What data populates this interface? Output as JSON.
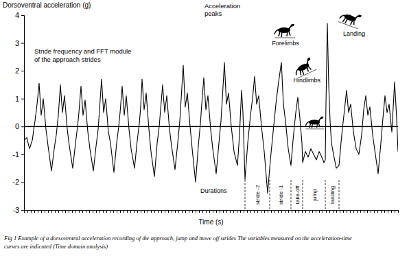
{
  "chart_data": {
    "type": "line",
    "y_label": "Dorsoventral acceleration (g)",
    "x_label": "Time (s)",
    "color": "#000000",
    "grid": false,
    "tick_labels": "y",
    "xlim": [
      0,
      545
    ],
    "ylim": [
      -3,
      4
    ],
    "yticks": [
      -3,
      -2,
      -1,
      0,
      1,
      2,
      3,
      4
    ],
    "xticks": [
      0,
      5,
      10,
      15,
      20,
      25,
      30,
      35,
      40,
      45,
      50,
      55,
      60,
      65,
      70,
      75,
      80,
      85,
      90,
      95,
      100,
      105,
      110,
      115,
      120,
      125,
      130,
      135,
      140,
      145,
      150,
      155,
      160,
      165,
      170,
      175,
      180,
      185,
      190,
      195,
      200,
      205,
      210,
      215,
      220,
      225,
      230,
      235,
      240,
      245,
      250,
      255,
      260,
      265,
      270,
      275,
      280,
      285,
      290,
      295,
      300,
      305,
      310,
      315,
      320,
      325,
      330,
      335,
      340,
      345,
      350,
      355,
      360,
      365,
      370,
      375,
      380,
      385,
      390,
      395,
      400,
      405,
      410,
      415,
      420,
      425,
      430,
      435,
      440,
      445,
      450,
      455,
      460,
      465,
      470,
      475,
      480,
      485,
      490,
      495,
      500,
      505,
      510,
      515,
      520,
      525,
      530,
      535,
      540,
      545
    ],
    "baseline": 0,
    "x": [
      0,
      4,
      8,
      12,
      16,
      19,
      22,
      25,
      28,
      32,
      35,
      40,
      44,
      47,
      50,
      53,
      56,
      59,
      63,
      66,
      71,
      75,
      78,
      80,
      83,
      86,
      89,
      93,
      96,
      101,
      105,
      108,
      110,
      113,
      116,
      119,
      123,
      126,
      131,
      135,
      138,
      140,
      143,
      146,
      149,
      153,
      156,
      161,
      165,
      168,
      170,
      172,
      175,
      178,
      182,
      185,
      190,
      194,
      197,
      199,
      202,
      205,
      208,
      212,
      215,
      220,
      224,
      227,
      229,
      232,
      235,
      238,
      242,
      245,
      250,
      254,
      257,
      259,
      262,
      265,
      268,
      272,
      275,
      280,
      284,
      287,
      289,
      292,
      295,
      298,
      302,
      306,
      311,
      314,
      317,
      319,
      322,
      326,
      330,
      333,
      336,
      339,
      342,
      346,
      350,
      355,
      359,
      363,
      367,
      371,
      375,
      378,
      381,
      385,
      389,
      392,
      396,
      399,
      402,
      405,
      406,
      410,
      414,
      418,
      422,
      426,
      430,
      434,
      437,
      439,
      440,
      442,
      444,
      446,
      448,
      451,
      455,
      459,
      463,
      467,
      470,
      473,
      476,
      480,
      484,
      488,
      492,
      495,
      498,
      501,
      504,
      508,
      512,
      516,
      520,
      523,
      526,
      529,
      532,
      536,
      540,
      543,
      545
    ],
    "values": [
      -0.5,
      -0.4,
      -0.8,
      -0.5,
      0.2,
      0.8,
      1.55,
      0.4,
      1.0,
      -0.1,
      -0.7,
      -1.6,
      -0.8,
      -0.3,
      0.4,
      1.5,
      0.5,
      1.1,
      -0.1,
      -0.7,
      -1.5,
      -0.6,
      0.0,
      0.5,
      1.45,
      0.4,
      0.95,
      -0.2,
      -0.8,
      -1.6,
      -0.7,
      -0.1,
      0.6,
      1.7,
      0.5,
      1.0,
      -0.2,
      -0.6,
      -1.65,
      -0.6,
      0.0,
      0.5,
      1.45,
      0.4,
      1.1,
      -0.1,
      -0.8,
      -1.5,
      -0.5,
      0.1,
      0.7,
      1.7,
      0.6,
      1.2,
      -0.1,
      -0.9,
      -1.8,
      -0.6,
      0.0,
      0.6,
      1.5,
      0.5,
      1.1,
      -0.1,
      -0.7,
      -1.55,
      -0.6,
      0.2,
      1.0,
      2.2,
      0.7,
      1.2,
      0.0,
      -0.8,
      -2.0,
      -0.7,
      0.1,
      0.8,
      1.75,
      0.6,
      1.1,
      -0.1,
      -0.8,
      -1.7,
      -0.6,
      0.2,
      1.0,
      2.3,
      0.8,
      1.2,
      0.0,
      -0.9,
      -1.4,
      -0.3,
      1.3,
      0.5,
      -1.9,
      -0.6,
      0.4,
      1.0,
      1.8,
      0.8,
      1.1,
      0.0,
      -0.9,
      -2.4,
      -1.2,
      -0.2,
      0.8,
      1.6,
      2.3,
      0.8,
      0.2,
      -0.8,
      -1.4,
      -0.5,
      0.5,
      1.05,
      0.3,
      -0.6,
      -1.3,
      -0.9,
      -1.1,
      -0.8,
      -1.0,
      -1.2,
      -0.9,
      -1.1,
      -1.3,
      -1.2,
      0.8,
      3.7,
      1.5,
      0.2,
      -0.6,
      -1.0,
      -1.5,
      -1.4,
      -0.3,
      0.6,
      1.3,
      0.5,
      0.8,
      -0.2,
      -0.8,
      -1.0,
      -0.3,
      0.6,
      1.1,
      0.4,
      0.7,
      -0.3,
      -1.0,
      -1.7,
      -0.6,
      0.3,
      1.1,
      0.5,
      0.8,
      -0.2,
      1.6,
      0.3,
      -0.9
    ],
    "annotations": {
      "peaks": [
        "Acceleration",
        "peaks"
      ],
      "stride_frequency": [
        "Stride frequency and FFT module",
        "of the approach strides"
      ],
      "forelimbs": "Forelimbs",
      "hindlimbs": "Hindlimbs",
      "landing": "Landing"
    },
    "durations": {
      "title": "Durations",
      "boundaries": [
        322,
        358,
        389,
        406,
        439,
        459
      ],
      "labels": [
        "stride -2",
        "stride -1",
        "take-off",
        "jump",
        "landing"
      ]
    },
    "caption": [
      "Fig 1  Example of a dorsoventral acceleration recording of the approach, jump and move off strides  The variables measured on the acceleration-time",
      "curves are indicated (Time domain analysis)"
    ]
  }
}
